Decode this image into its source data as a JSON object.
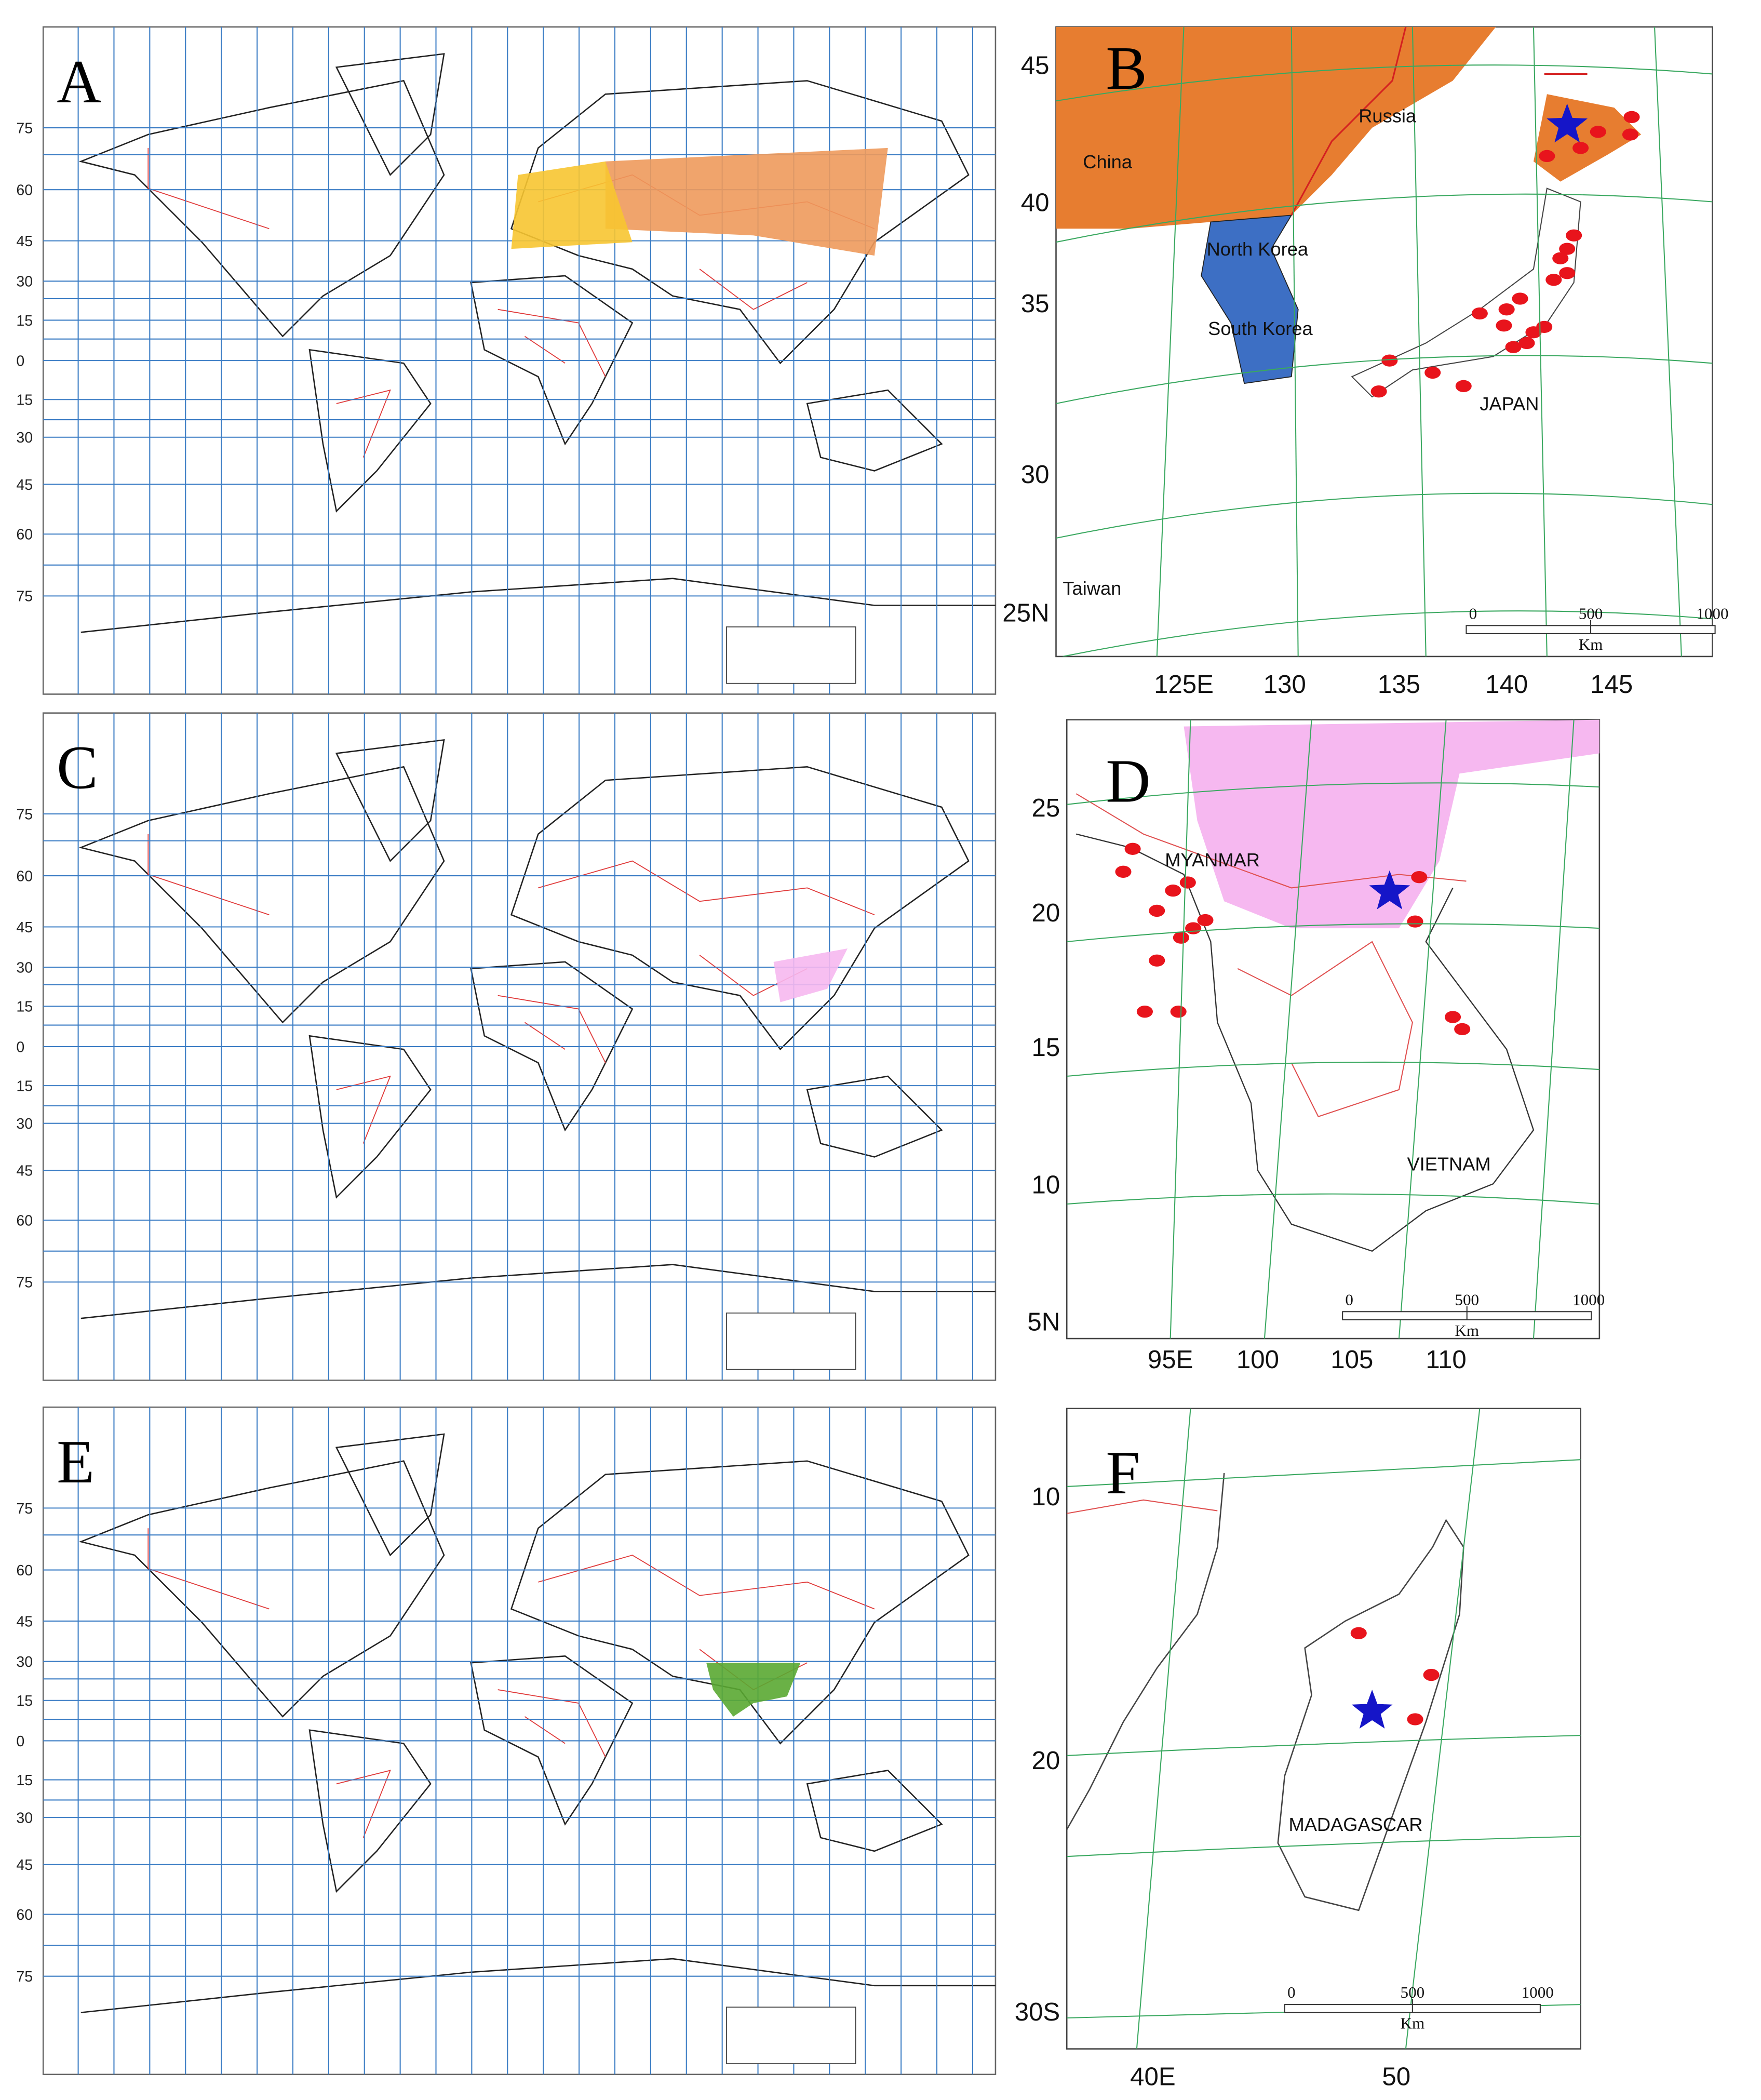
{
  "panels": [
    {
      "letter": "A",
      "latitudes": [
        "75",
        "60",
        "45",
        "30",
        "15",
        "0",
        "15",
        "30",
        "45",
        "60",
        "75"
      ]
    },
    {
      "letter": "B",
      "latitudes": [
        "45",
        "40",
        "35",
        "30",
        "25N"
      ],
      "longitudes": [
        "125E",
        "130",
        "135",
        "140",
        "145"
      ],
      "places": [
        "China",
        "Russia",
        "North Korea",
        "South Korea",
        "JAPAN",
        "Taiwan"
      ],
      "scale": [
        "0",
        "500",
        "1000"
      ],
      "scale_unit": "Km"
    },
    {
      "letter": "C",
      "latitudes": [
        "75",
        "60",
        "45",
        "30",
        "15",
        "0",
        "15",
        "30",
        "45",
        "60",
        "75"
      ]
    },
    {
      "letter": "D",
      "latitudes": [
        "25",
        "20",
        "15",
        "10",
        "5N"
      ],
      "longitudes": [
        "95E",
        "100",
        "105",
        "110"
      ],
      "places": [
        "MYANMAR",
        "VIETNAM"
      ],
      "scale": [
        "0",
        "500",
        "1000"
      ],
      "scale_unit": "Km"
    },
    {
      "letter": "E",
      "latitudes": [
        "75",
        "60",
        "45",
        "30",
        "15",
        "0",
        "15",
        "30",
        "45",
        "60",
        "75"
      ]
    },
    {
      "letter": "F",
      "latitudes": [
        "10",
        "20",
        "30S"
      ],
      "longitudes": [
        "40E",
        "50"
      ],
      "places": [
        "MADAGASCAR"
      ],
      "scale": [
        "0",
        "500",
        "1000"
      ],
      "scale_unit": "Km"
    }
  ]
}
